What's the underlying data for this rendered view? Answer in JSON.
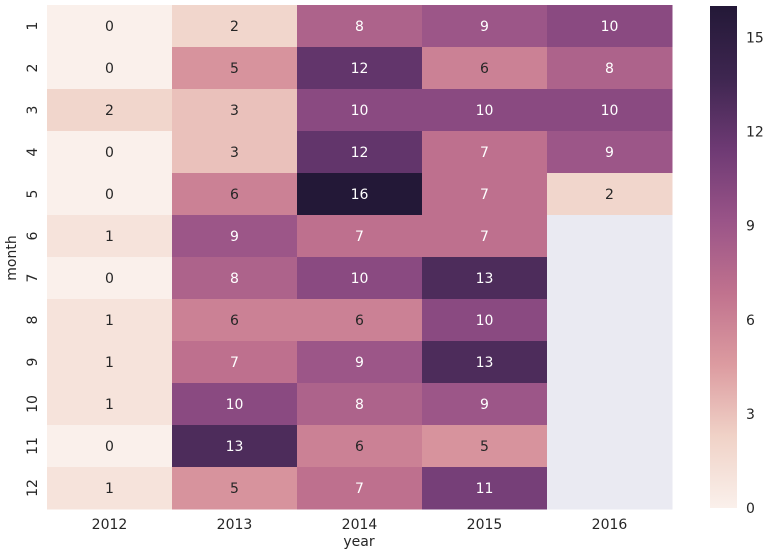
{
  "chart_data": {
    "type": "heatmap",
    "xlabel": "year",
    "ylabel": "month",
    "x_categories": [
      "2012",
      "2013",
      "2014",
      "2015",
      "2016"
    ],
    "y_categories": [
      "1",
      "2",
      "3",
      "4",
      "5",
      "6",
      "7",
      "8",
      "9",
      "10",
      "11",
      "12"
    ],
    "values": [
      [
        0,
        2,
        8,
        9,
        10
      ],
      [
        0,
        5,
        12,
        6,
        8
      ],
      [
        2,
        3,
        10,
        10,
        10
      ],
      [
        0,
        3,
        12,
        7,
        9
      ],
      [
        0,
        6,
        16,
        7,
        2
      ],
      [
        1,
        9,
        7,
        7,
        null
      ],
      [
        0,
        8,
        10,
        13,
        null
      ],
      [
        1,
        6,
        6,
        10,
        null
      ],
      [
        1,
        7,
        9,
        13,
        null
      ],
      [
        1,
        10,
        8,
        9,
        null
      ],
      [
        0,
        13,
        6,
        5,
        null
      ],
      [
        1,
        5,
        7,
        11,
        null
      ]
    ],
    "colorbar": {
      "min": 0,
      "max": 16,
      "ticks": [
        0,
        3,
        6,
        9,
        12,
        15
      ]
    },
    "colormap": [
      "#faf0eb",
      "#f0d2c7",
      "#dc9ba0",
      "#c0728e",
      "#9a5488",
      "#6e3a74",
      "#3e2650",
      "#231837"
    ],
    "missing_color": "#eaeaf2"
  }
}
